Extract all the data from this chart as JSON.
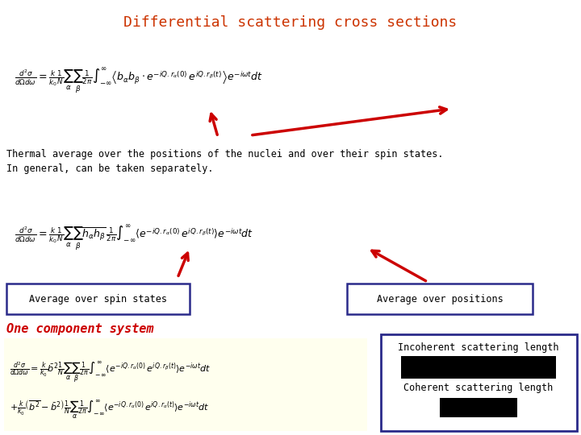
{
  "title": "Differential scattering cross sections",
  "title_color": "#cc3300",
  "title_fontsize": 13,
  "bg_color": "#ffffff",
  "text1": "Thermal average over the positions of the nuclei and over their spin states.",
  "text2": "In general, can be taken separately.",
  "label_spin": "Average over spin states",
  "label_pos": "Average over positions",
  "label_incoherent": "Incoherent scattering length",
  "label_coherent": "Coherent scattering length",
  "label_one_component": "One component system",
  "arrow_color": "#cc0000",
  "box_color": "#2a2a8a",
  "yellow_bg": "#ffffee"
}
